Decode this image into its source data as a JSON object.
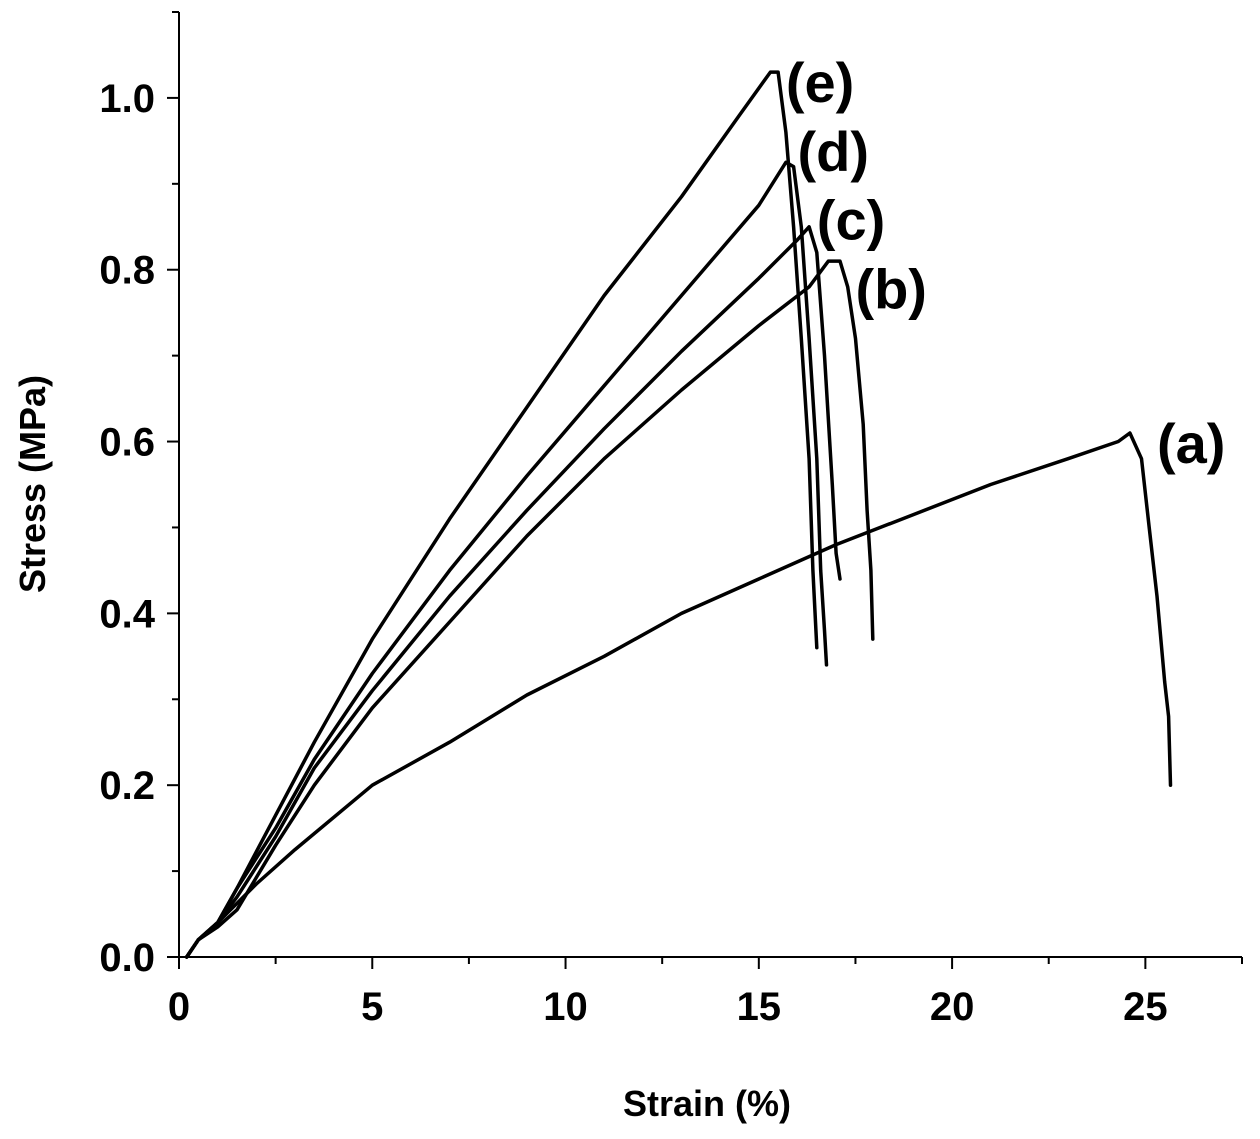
{
  "chart_data": {
    "type": "line",
    "title": "",
    "xlabel": "Strain (%)",
    "ylabel": "Stress (MPa)",
    "xlim": [
      0,
      27.5
    ],
    "ylim": [
      0,
      1.1
    ],
    "x_ticks": [
      "0",
      "5",
      "10",
      "15",
      "20",
      "25"
    ],
    "x_tick_values": [
      0,
      5,
      10,
      15,
      20,
      25
    ],
    "y_ticks": [
      "0.0",
      "0.2",
      "0.4",
      "0.6",
      "0.8",
      "1.0"
    ],
    "y_tick_values": [
      0,
      0.2,
      0.4,
      0.6,
      0.8,
      1.0
    ],
    "grid": false,
    "legend": "none",
    "line_color": "#000000",
    "series": [
      {
        "name": "(a)",
        "label_at": [
          25.3,
          0.575
        ],
        "points": [
          [
            0.2,
            0
          ],
          [
            0.5,
            0.02
          ],
          [
            1,
            0.04
          ],
          [
            2,
            0.085
          ],
          [
            3,
            0.125
          ],
          [
            5,
            0.2
          ],
          [
            7,
            0.25
          ],
          [
            9,
            0.305
          ],
          [
            11,
            0.35
          ],
          [
            13,
            0.4
          ],
          [
            15,
            0.44
          ],
          [
            17,
            0.48
          ],
          [
            19,
            0.515
          ],
          [
            21,
            0.55
          ],
          [
            23,
            0.58
          ],
          [
            24.3,
            0.6
          ],
          [
            24.6,
            0.61
          ],
          [
            24.9,
            0.58
          ],
          [
            25.1,
            0.5
          ],
          [
            25.3,
            0.42
          ],
          [
            25.5,
            0.32
          ],
          [
            25.6,
            0.28
          ],
          [
            25.65,
            0.2
          ]
        ]
      },
      {
        "name": "(b)",
        "label_at": [
          17.5,
          0.755
        ],
        "points": [
          [
            0.2,
            0
          ],
          [
            0.5,
            0.02
          ],
          [
            1,
            0.035
          ],
          [
            1.5,
            0.055
          ],
          [
            2.5,
            0.13
          ],
          [
            3.5,
            0.2
          ],
          [
            5,
            0.29
          ],
          [
            7,
            0.39
          ],
          [
            9,
            0.49
          ],
          [
            11,
            0.58
          ],
          [
            13,
            0.66
          ],
          [
            15,
            0.735
          ],
          [
            16.3,
            0.78
          ],
          [
            16.8,
            0.81
          ],
          [
            17.1,
            0.81
          ],
          [
            17.3,
            0.78
          ],
          [
            17.5,
            0.72
          ],
          [
            17.7,
            0.62
          ],
          [
            17.8,
            0.52
          ],
          [
            17.9,
            0.45
          ],
          [
            17.95,
            0.37
          ]
        ]
      },
      {
        "name": "(c)",
        "label_at": [
          16.5,
          0.835
        ],
        "points": [
          [
            0.2,
            0
          ],
          [
            0.5,
            0.02
          ],
          [
            1,
            0.04
          ],
          [
            1.5,
            0.07
          ],
          [
            2.5,
            0.14
          ],
          [
            3.5,
            0.22
          ],
          [
            5,
            0.31
          ],
          [
            7,
            0.42
          ],
          [
            9,
            0.52
          ],
          [
            11,
            0.615
          ],
          [
            13,
            0.705
          ],
          [
            15,
            0.79
          ],
          [
            16,
            0.835
          ],
          [
            16.3,
            0.85
          ],
          [
            16.5,
            0.82
          ],
          [
            16.7,
            0.7
          ],
          [
            16.9,
            0.55
          ],
          [
            17.0,
            0.47
          ],
          [
            17.1,
            0.44
          ]
        ]
      },
      {
        "name": "(d)",
        "label_at": [
          16.0,
          0.915
        ],
        "points": [
          [
            0.2,
            0
          ],
          [
            0.5,
            0.02
          ],
          [
            1,
            0.04
          ],
          [
            1.5,
            0.08
          ],
          [
            2.5,
            0.15
          ],
          [
            3.5,
            0.23
          ],
          [
            5,
            0.33
          ],
          [
            7,
            0.45
          ],
          [
            9,
            0.56
          ],
          [
            11,
            0.665
          ],
          [
            13,
            0.77
          ],
          [
            15,
            0.875
          ],
          [
            15.7,
            0.925
          ],
          [
            15.9,
            0.92
          ],
          [
            16.1,
            0.85
          ],
          [
            16.3,
            0.72
          ],
          [
            16.5,
            0.58
          ],
          [
            16.6,
            0.45
          ],
          [
            16.7,
            0.38
          ],
          [
            16.75,
            0.34
          ]
        ]
      },
      {
        "name": "(e)",
        "label_at": [
          15.7,
          0.995
        ],
        "points": [
          [
            0.2,
            0
          ],
          [
            0.5,
            0.02
          ],
          [
            1,
            0.04
          ],
          [
            1.5,
            0.08
          ],
          [
            2.5,
            0.165
          ],
          [
            3.5,
            0.25
          ],
          [
            5,
            0.37
          ],
          [
            7,
            0.51
          ],
          [
            9,
            0.64
          ],
          [
            11,
            0.77
          ],
          [
            13,
            0.885
          ],
          [
            14.5,
            0.98
          ],
          [
            15.3,
            1.03
          ],
          [
            15.5,
            1.03
          ],
          [
            15.7,
            0.96
          ],
          [
            15.9,
            0.85
          ],
          [
            16.1,
            0.72
          ],
          [
            16.3,
            0.58
          ],
          [
            16.4,
            0.45
          ],
          [
            16.5,
            0.36
          ]
        ]
      }
    ]
  }
}
